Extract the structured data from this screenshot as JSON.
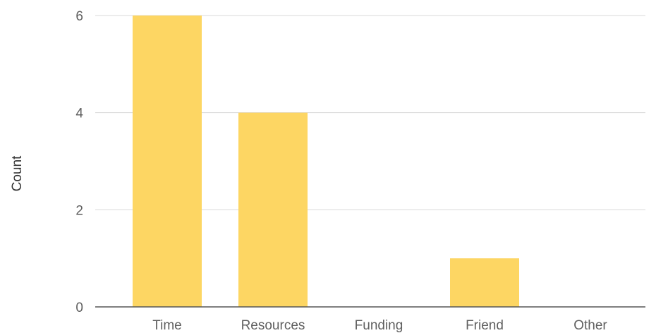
{
  "chart_data": {
    "type": "bar",
    "categories": [
      "Time",
      "Resources",
      "Funding",
      "Friend",
      "Other"
    ],
    "values": [
      6,
      4,
      0,
      1,
      0
    ],
    "ylabel": "Count",
    "ylim": [
      0,
      6
    ],
    "yticks": [
      0,
      2,
      4,
      6
    ],
    "grid": true,
    "bar_color": "#fdd663",
    "gridline_color": "#d9d9d9",
    "baseline_color": "#555555"
  }
}
